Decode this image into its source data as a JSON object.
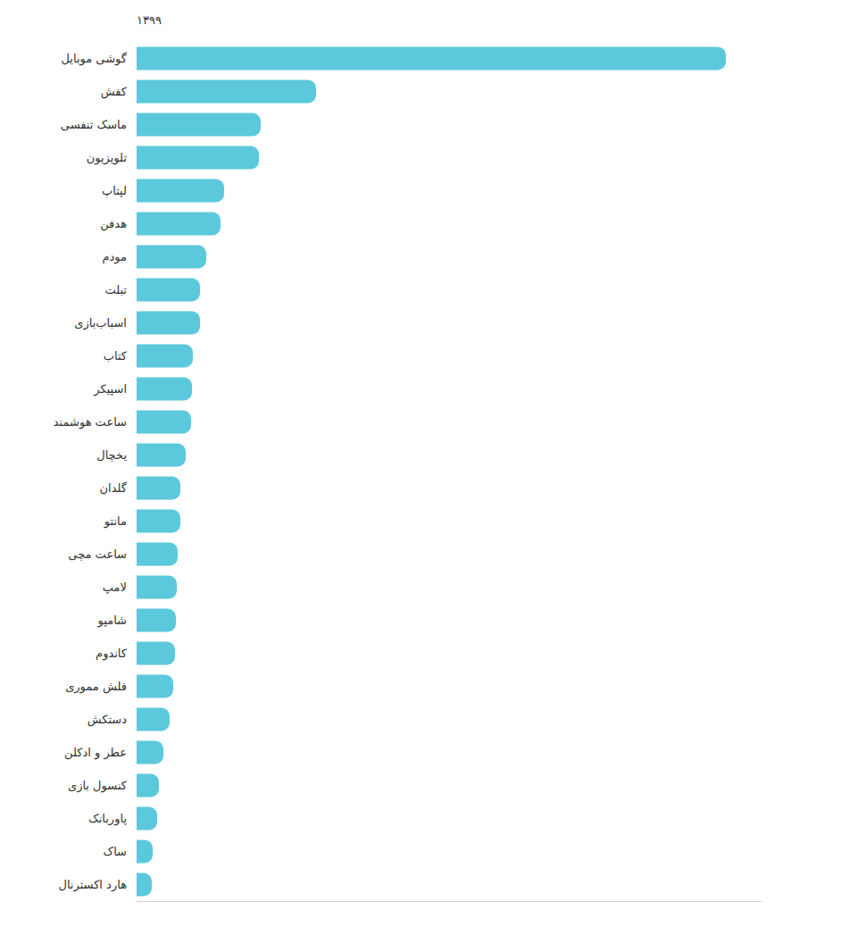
{
  "chart_data": {
    "type": "bar",
    "orientation": "horizontal",
    "title": "۱۳۹۹",
    "categories": [
      "گوشی موبایل",
      "کفش",
      "ماسک تنفسی",
      "تلویزیون",
      "لپتاپ",
      "هدفن",
      "مودم",
      "تبلت",
      "اسباب‌بازی",
      "کتاب",
      "اسپیکر",
      "ساعت هوشمند",
      "یخچال",
      "گلدان",
      "مانتو",
      "ساعت مچی",
      "لامپ",
      "شامپو",
      "کاندوم",
      "فلش مموری",
      "دستکش",
      "عطر و ادکلن",
      "کنسول بازی",
      "پاوربانک",
      "ساک",
      "هارد اکسترنال"
    ],
    "values": [
      660,
      201,
      139,
      137,
      98,
      94,
      78,
      71,
      71,
      63,
      62,
      61,
      55,
      49,
      49,
      46,
      45,
      44,
      43,
      41,
      37,
      30,
      25,
      23,
      18,
      17
    ],
    "color": "#5bc8dc",
    "xlim": [
      0,
      700
    ],
    "grid": false,
    "tick_labels": "y"
  }
}
